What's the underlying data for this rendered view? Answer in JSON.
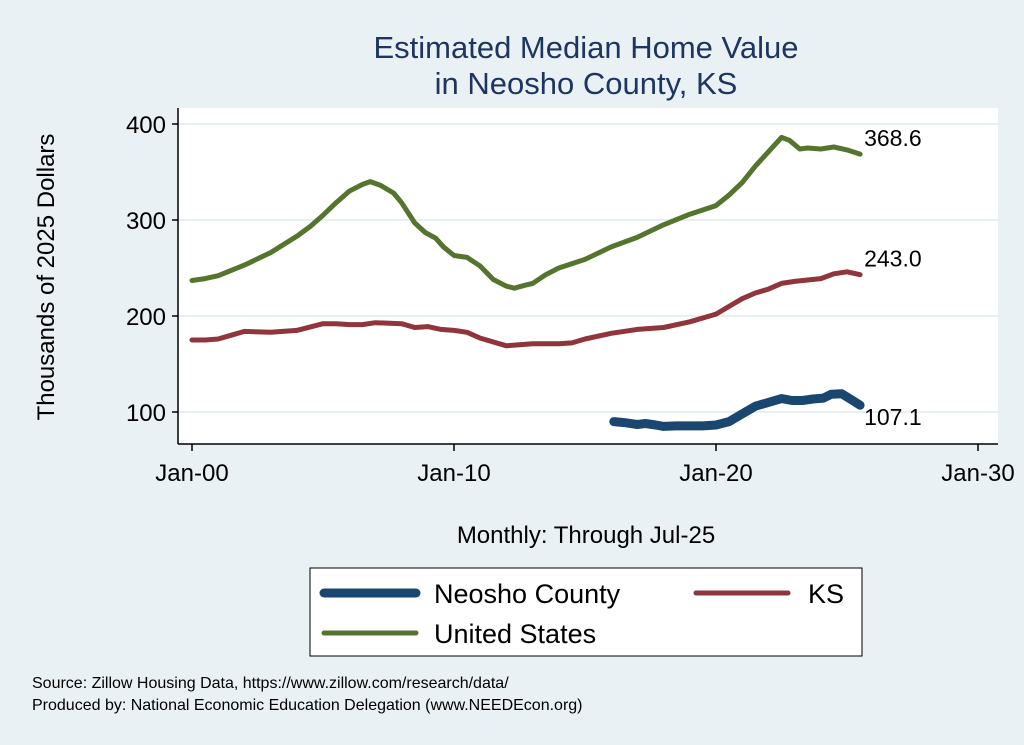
{
  "chart_data": {
    "type": "line",
    "title": [
      "Estimated Median Home Value",
      "in Neosho County, KS"
    ],
    "xlabel": "Monthly: Through Jul-25",
    "ylabel": "Thousands of 2025 Dollars",
    "xlim": [
      2000,
      2030
    ],
    "ylim": [
      90,
      410
    ],
    "x_ticks": [
      {
        "value": 2000,
        "label": "Jan-00"
      },
      {
        "value": 2010,
        "label": "Jan-10"
      },
      {
        "value": 2020,
        "label": "Jan-20"
      },
      {
        "value": 2030,
        "label": "Jan-30"
      }
    ],
    "y_ticks": [
      {
        "value": 100,
        "label": "100"
      },
      {
        "value": 200,
        "label": "200"
      },
      {
        "value": 300,
        "label": "300"
      },
      {
        "value": 400,
        "label": "400"
      }
    ],
    "grid": true,
    "legend_position": "bottom",
    "series": [
      {
        "name": "Neosho County",
        "color": "#1a476f",
        "end_label": "107.1",
        "points": [
          [
            2016.1,
            90.0
          ],
          [
            2016.5,
            89.0
          ],
          [
            2017.0,
            87.0
          ],
          [
            2017.3,
            88.0
          ],
          [
            2017.7,
            86.5
          ],
          [
            2018.0,
            85.0
          ],
          [
            2018.5,
            85.5
          ],
          [
            2019.0,
            85.5
          ],
          [
            2019.5,
            85.5
          ],
          [
            2020.0,
            86.5
          ],
          [
            2020.5,
            90.0
          ],
          [
            2021.0,
            98.0
          ],
          [
            2021.5,
            106.0
          ],
          [
            2022.0,
            110.0
          ],
          [
            2022.5,
            114.0
          ],
          [
            2022.9,
            112.0
          ],
          [
            2023.3,
            112.0
          ],
          [
            2023.7,
            113.5
          ],
          [
            2024.1,
            114.5
          ],
          [
            2024.4,
            118.5
          ],
          [
            2024.8,
            119.0
          ],
          [
            2025.1,
            114.0
          ],
          [
            2025.5,
            107.1
          ]
        ]
      },
      {
        "name": "KS",
        "color": "#90353b",
        "end_label": "243.0",
        "points": [
          [
            2000.0,
            175.0
          ],
          [
            2000.5,
            175.0
          ],
          [
            2001.0,
            176.0
          ],
          [
            2001.5,
            180.0
          ],
          [
            2002.0,
            184.0
          ],
          [
            2003.0,
            183.0
          ],
          [
            2004.0,
            185.0
          ],
          [
            2005.0,
            192.0
          ],
          [
            2005.5,
            192.0
          ],
          [
            2006.0,
            191.0
          ],
          [
            2006.5,
            191.0
          ],
          [
            2007.0,
            193.0
          ],
          [
            2008.0,
            192.0
          ],
          [
            2008.5,
            188.0
          ],
          [
            2009.0,
            189.0
          ],
          [
            2009.5,
            186.0
          ],
          [
            2010.0,
            185.0
          ],
          [
            2010.5,
            183.0
          ],
          [
            2011.0,
            177.0
          ],
          [
            2012.0,
            169.0
          ],
          [
            2012.5,
            170.0
          ],
          [
            2013.0,
            171.0
          ],
          [
            2014.0,
            171.0
          ],
          [
            2014.5,
            172.0
          ],
          [
            2015.0,
            176.0
          ],
          [
            2016.0,
            182.0
          ],
          [
            2017.0,
            186.0
          ],
          [
            2018.0,
            188.0
          ],
          [
            2019.0,
            194.0
          ],
          [
            2020.0,
            202.0
          ],
          [
            2020.5,
            210.0
          ],
          [
            2021.0,
            218.0
          ],
          [
            2021.5,
            224.0
          ],
          [
            2022.0,
            228.0
          ],
          [
            2022.5,
            234.0
          ],
          [
            2023.0,
            236.0
          ],
          [
            2024.0,
            239.0
          ],
          [
            2024.5,
            244.0
          ],
          [
            2025.0,
            246.0
          ],
          [
            2025.5,
            243.0
          ]
        ]
      },
      {
        "name": "United States",
        "color": "#55752f",
        "end_label": "368.6",
        "points": [
          [
            2000.0,
            237.0
          ],
          [
            2000.5,
            239.0
          ],
          [
            2001.0,
            242.0
          ],
          [
            2002.0,
            253.0
          ],
          [
            2003.0,
            266.0
          ],
          [
            2004.0,
            283.0
          ],
          [
            2004.5,
            293.0
          ],
          [
            2005.0,
            305.0
          ],
          [
            2005.5,
            318.0
          ],
          [
            2006.0,
            330.0
          ],
          [
            2006.5,
            337.0
          ],
          [
            2006.8,
            340.0
          ],
          [
            2007.2,
            336.0
          ],
          [
            2007.7,
            328.0
          ],
          [
            2008.0,
            318.0
          ],
          [
            2008.5,
            297.0
          ],
          [
            2008.9,
            287.0
          ],
          [
            2009.3,
            281.0
          ],
          [
            2009.6,
            272.0
          ],
          [
            2010.0,
            263.0
          ],
          [
            2010.5,
            261.0
          ],
          [
            2011.0,
            252.0
          ],
          [
            2011.5,
            238.0
          ],
          [
            2012.0,
            231.0
          ],
          [
            2012.3,
            229.0
          ],
          [
            2012.7,
            232.0
          ],
          [
            2013.0,
            234.0
          ],
          [
            2013.5,
            243.0
          ],
          [
            2014.0,
            250.0
          ],
          [
            2015.0,
            259.0
          ],
          [
            2016.0,
            272.0
          ],
          [
            2017.0,
            282.0
          ],
          [
            2018.0,
            295.0
          ],
          [
            2019.0,
            306.0
          ],
          [
            2020.0,
            315.0
          ],
          [
            2020.5,
            326.0
          ],
          [
            2021.0,
            339.0
          ],
          [
            2021.5,
            356.0
          ],
          [
            2022.0,
            371.0
          ],
          [
            2022.5,
            386.0
          ],
          [
            2022.8,
            383.0
          ],
          [
            2023.2,
            374.0
          ],
          [
            2023.5,
            375.0
          ],
          [
            2024.0,
            374.0
          ],
          [
            2024.5,
            376.0
          ],
          [
            2025.0,
            373.0
          ],
          [
            2025.5,
            368.6
          ]
        ]
      }
    ],
    "legend_order": [
      "Neosho County",
      "KS",
      "United States"
    ]
  },
  "source_lines": [
    "Source: Zillow Housing Data, https://www.zillow.com/research/data/",
    "Produced by: National Economic Education Delegation (www.NEEDEcon.org)"
  ]
}
